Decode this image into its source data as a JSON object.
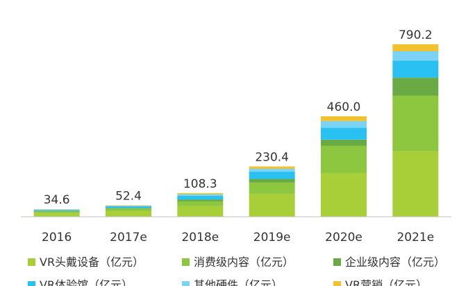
{
  "chart_data": {
    "type": "bar",
    "stacked": true,
    "categories": [
      "2016",
      "2017e",
      "2018e",
      "2019e",
      "2020e",
      "2021e"
    ],
    "totals": [
      "34.6",
      "52.4",
      "108.3",
      "230.4",
      "460.0",
      "790.2"
    ],
    "series": [
      {
        "name": "VR头戴设备（亿元）",
        "color": "#a8cf38",
        "values": [
          18.0,
          27.0,
          48.0,
          105.0,
          200.0,
          300.0
        ]
      },
      {
        "name": "消费级内容（亿元）",
        "color": "#8dc63f",
        "values": [
          6.0,
          10.0,
          22.0,
          52.0,
          125.0,
          255.0
        ]
      },
      {
        "name": "企业级内容（亿元）",
        "color": "#6aaa45",
        "values": [
          2.0,
          3.0,
          9.0,
          16.0,
          28.0,
          82.0
        ]
      },
      {
        "name": "VR体验馆（亿元）",
        "color": "#29c1f2",
        "values": [
          5.0,
          7.5,
          17.0,
          33.0,
          55.0,
          78.0
        ]
      },
      {
        "name": "其他硬件（亿元）",
        "color": "#7ad3f4",
        "values": [
          2.0,
          3.0,
          7.0,
          14.3,
          30.0,
          43.0
        ]
      },
      {
        "name": "VR营销（亿元）",
        "color": "#f2c12e",
        "values": [
          1.6,
          1.9,
          5.3,
          10.1,
          22.0,
          32.2
        ]
      }
    ],
    "ylim": [
      0,
      850
    ],
    "grid": false,
    "legend_position": "bottom",
    "title": "",
    "xlabel": "",
    "ylabel": ""
  }
}
